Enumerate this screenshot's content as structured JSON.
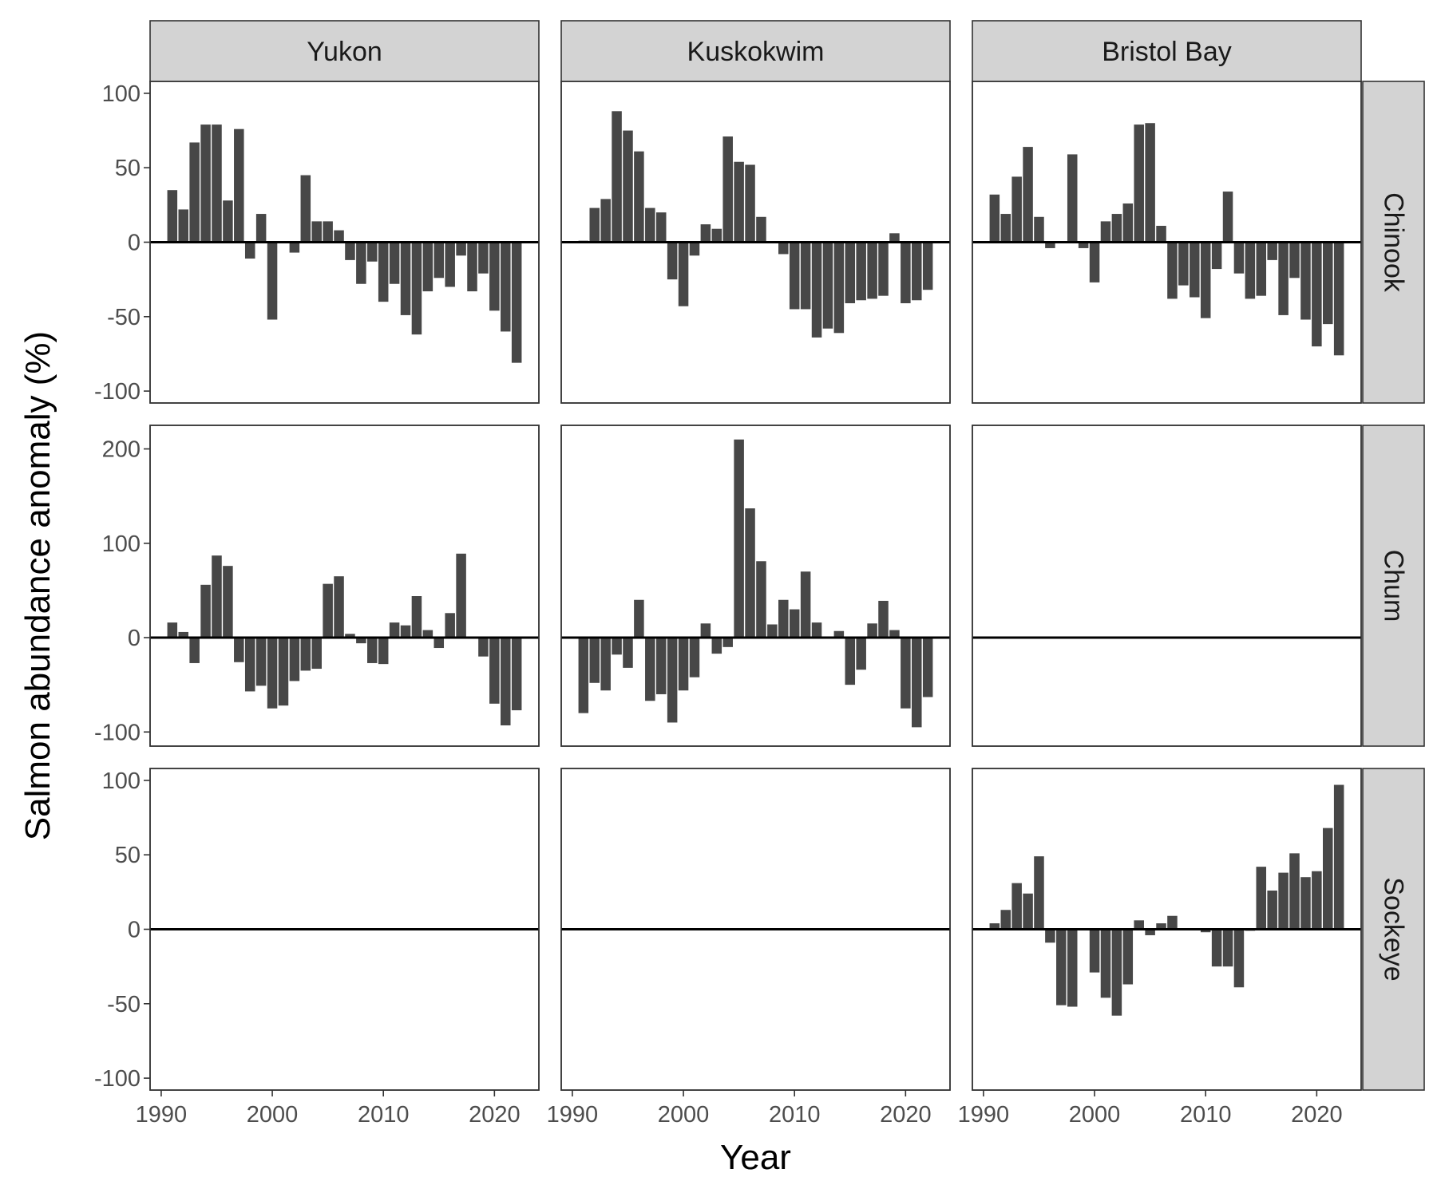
{
  "chart_data": {
    "type": "bar",
    "facet_layout": "grid",
    "xlabel": "Year",
    "ylabel": "Salmon abundance anomaly (%)",
    "bar_color": "#474747",
    "strip_color": "#d3d3d3",
    "xlim": [
      1989,
      2024
    ],
    "x_ticks": [
      1990,
      2000,
      2010,
      2020
    ],
    "x_tick_labels": [
      "1990",
      "2000",
      "2010",
      "2020"
    ],
    "columns": [
      "Yukon",
      "Kuskokwim",
      "Bristol Bay"
    ],
    "rows": [
      {
        "name": "Chinook",
        "ylim": [
          -108,
          108
        ],
        "y_ticks": [
          -100,
          -50,
          0,
          50,
          100
        ],
        "y_tick_labels": [
          "-100",
          "-50",
          "0",
          "50",
          "100"
        ]
      },
      {
        "name": "Chum",
        "ylim": [
          -115,
          225
        ],
        "y_ticks": [
          -100,
          0,
          100,
          200
        ],
        "y_tick_labels": [
          "-100",
          "0",
          "100",
          "200"
        ]
      },
      {
        "name": "Sockeye",
        "ylim": [
          -108,
          108
        ],
        "y_ticks": [
          -100,
          -50,
          0,
          50,
          100
        ],
        "y_tick_labels": [
          "-100",
          "-50",
          "0",
          "50",
          "100"
        ]
      }
    ],
    "panels": [
      {
        "row": "Chinook",
        "column": "Yukon",
        "years": [
          1991,
          1992,
          1993,
          1994,
          1995,
          1996,
          1997,
          1998,
          1999,
          2000,
          2001,
          2002,
          2003,
          2004,
          2005,
          2006,
          2007,
          2008,
          2009,
          2010,
          2011,
          2012,
          2013,
          2014,
          2015,
          2016,
          2017,
          2018,
          2019,
          2020,
          2021,
          2022
        ],
        "values": [
          35,
          22,
          67,
          79,
          79,
          28,
          76,
          -11,
          19,
          -52,
          0,
          -7,
          45,
          14,
          14,
          8,
          -12,
          -28,
          -13,
          -40,
          -28,
          -49,
          -62,
          -33,
          -24,
          -30,
          -9,
          -33,
          -21,
          -46,
          -60,
          -81
        ]
      },
      {
        "row": "Chinook",
        "column": "Kuskokwim",
        "years": [
          1991,
          1992,
          1993,
          1994,
          1995,
          1996,
          1997,
          1998,
          1999,
          2000,
          2001,
          2002,
          2003,
          2004,
          2005,
          2006,
          2007,
          2008,
          2009,
          2010,
          2011,
          2012,
          2013,
          2014,
          2015,
          2016,
          2017,
          2018,
          2019,
          2020,
          2021,
          2022
        ],
        "values": [
          1,
          23,
          29,
          88,
          75,
          61,
          23,
          20,
          -25,
          -43,
          -9,
          12,
          9,
          71,
          54,
          52,
          17,
          0,
          -8,
          -45,
          -45,
          -64,
          -58,
          -61,
          -41,
          -39,
          -38,
          -36,
          6,
          -41,
          -39,
          -32
        ]
      },
      {
        "row": "Chinook",
        "column": "Bristol Bay",
        "years": [
          1991,
          1992,
          1993,
          1994,
          1995,
          1996,
          1997,
          1998,
          1999,
          2000,
          2001,
          2002,
          2003,
          2004,
          2005,
          2006,
          2007,
          2008,
          2009,
          2010,
          2011,
          2012,
          2013,
          2014,
          2015,
          2016,
          2017,
          2018,
          2019,
          2020,
          2021,
          2022
        ],
        "values": [
          32,
          19,
          44,
          64,
          17,
          -4,
          0,
          59,
          -4,
          -27,
          14,
          19,
          26,
          79,
          80,
          11,
          -38,
          -29,
          -37,
          -51,
          -18,
          34,
          -21,
          -38,
          -36,
          -12,
          -49,
          -24,
          -52,
          -70,
          -55,
          -76
        ]
      },
      {
        "row": "Chum",
        "column": "Yukon",
        "years": [
          1991,
          1992,
          1993,
          1994,
          1995,
          1996,
          1997,
          1998,
          1999,
          2000,
          2001,
          2002,
          2003,
          2004,
          2005,
          2006,
          2007,
          2008,
          2009,
          2010,
          2011,
          2012,
          2013,
          2014,
          2015,
          2016,
          2017,
          2018,
          2019,
          2020,
          2021,
          2022
        ],
        "values": [
          16,
          6,
          -27,
          56,
          87,
          76,
          -26,
          -57,
          -51,
          -75,
          -72,
          -46,
          -35,
          -33,
          57,
          65,
          4,
          -6,
          -27,
          -28,
          16,
          13,
          44,
          8,
          -11,
          26,
          89,
          0,
          -20,
          -70,
          -93,
          -77
        ]
      },
      {
        "row": "Chum",
        "column": "Kuskokwim",
        "years": [
          1991,
          1992,
          1993,
          1994,
          1995,
          1996,
          1997,
          1998,
          1999,
          2000,
          2001,
          2002,
          2003,
          2004,
          2005,
          2006,
          2007,
          2008,
          2009,
          2010,
          2011,
          2012,
          2013,
          2014,
          2015,
          2016,
          2017,
          2018,
          2019,
          2020,
          2021,
          2022
        ],
        "values": [
          -80,
          -48,
          -56,
          -18,
          -32,
          40,
          -67,
          -60,
          -90,
          -56,
          -42,
          15,
          -17,
          -10,
          210,
          137,
          81,
          14,
          40,
          30,
          70,
          16,
          0,
          7,
          -50,
          -34,
          15,
          39,
          8,
          -75,
          -95,
          -63
        ]
      },
      {
        "row": "Chum",
        "column": "Bristol Bay",
        "years": [],
        "values": []
      },
      {
        "row": "Sockeye",
        "column": "Yukon",
        "years": [],
        "values": []
      },
      {
        "row": "Sockeye",
        "column": "Kuskokwim",
        "years": [],
        "values": []
      },
      {
        "row": "Sockeye",
        "column": "Bristol Bay",
        "years": [
          1991,
          1992,
          1993,
          1994,
          1995,
          1996,
          1997,
          1998,
          1999,
          2000,
          2001,
          2002,
          2003,
          2004,
          2005,
          2006,
          2007,
          2008,
          2009,
          2010,
          2011,
          2012,
          2013,
          2014,
          2015,
          2016,
          2017,
          2018,
          2019,
          2020,
          2021,
          2022
        ],
        "values": [
          4,
          13,
          31,
          24,
          49,
          -9,
          -51,
          -52,
          0,
          -29,
          -46,
          -58,
          -37,
          6,
          -4,
          4,
          9,
          0,
          0,
          -2,
          -25,
          -25,
          -39,
          -1,
          42,
          26,
          38,
          51,
          35,
          39,
          68,
          97
        ]
      }
    ]
  }
}
